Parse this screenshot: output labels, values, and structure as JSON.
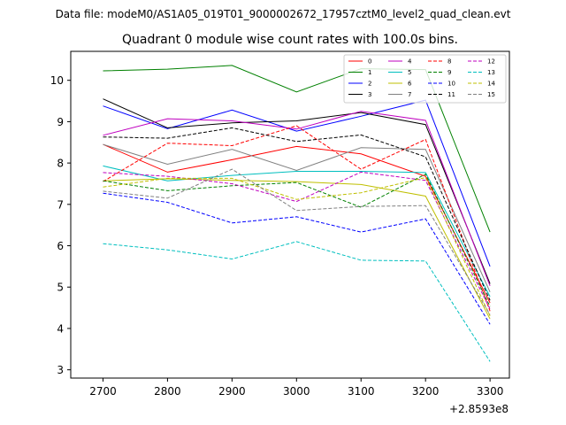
{
  "suptitle": "Data file: modeM0/AS1A05_019T01_9000002672_17957cztM0_level2_quad_clean.evt",
  "chart_data": {
    "type": "line",
    "title": "Quadrant 0 module wise count rates with 100.0s bins.",
    "xlabel": "",
    "ylabel": "",
    "x": [
      2700,
      2800,
      2900,
      3000,
      3100,
      3200,
      3300
    ],
    "x_tick_labels": [
      "2700",
      "2800",
      "2900",
      "3000",
      "3100",
      "3200",
      "3300"
    ],
    "x_offset_label": "+2.8593e8",
    "xlim": [
      2650,
      3330
    ],
    "ylim": [
      2.8,
      10.7
    ],
    "y_ticks": [
      3,
      4,
      5,
      6,
      7,
      8,
      9,
      10
    ],
    "y_tick_labels": [
      "3",
      "4",
      "5",
      "6",
      "7",
      "8",
      "9",
      "10"
    ],
    "grid": false,
    "legend_position": "top-right",
    "series": [
      {
        "name": "0",
        "color": "#ff0000",
        "dashed": false,
        "values": [
          8.45,
          7.78,
          8.08,
          8.4,
          8.22,
          7.68,
          4.62
        ]
      },
      {
        "name": "1",
        "color": "#008000",
        "dashed": false,
        "values": [
          10.23,
          10.27,
          10.36,
          9.72,
          10.28,
          10.26,
          6.33
        ]
      },
      {
        "name": "2",
        "color": "#0000ff",
        "dashed": false,
        "values": [
          9.38,
          8.83,
          9.28,
          8.77,
          9.13,
          9.52,
          5.5
        ]
      },
      {
        "name": "3",
        "color": "#000000",
        "dashed": false,
        "values": [
          9.55,
          8.85,
          8.97,
          9.02,
          9.22,
          8.93,
          5.08
        ]
      },
      {
        "name": "4",
        "color": "#bf00bf",
        "dashed": false,
        "values": [
          8.67,
          9.07,
          9.02,
          8.82,
          9.25,
          9.03,
          5.03
        ]
      },
      {
        "name": "5",
        "color": "#00bfbf",
        "dashed": false,
        "values": [
          7.93,
          7.57,
          7.7,
          7.8,
          7.8,
          7.77,
          4.77
        ]
      },
      {
        "name": "6",
        "color": "#bfbf00",
        "dashed": false,
        "values": [
          7.57,
          7.62,
          7.58,
          7.55,
          7.48,
          7.2,
          4.23
        ]
      },
      {
        "name": "7",
        "color": "#808080",
        "dashed": false,
        "values": [
          8.45,
          7.97,
          8.33,
          7.82,
          8.37,
          8.33,
          4.88
        ]
      },
      {
        "name": "8",
        "color": "#ff0000",
        "dashed": true,
        "values": [
          7.55,
          8.48,
          8.42,
          8.9,
          7.85,
          8.57,
          4.42
        ]
      },
      {
        "name": "9",
        "color": "#008000",
        "dashed": true,
        "values": [
          7.57,
          7.33,
          7.45,
          7.53,
          6.93,
          7.73,
          4.53
        ]
      },
      {
        "name": "10",
        "color": "#0000ff",
        "dashed": true,
        "values": [
          7.27,
          7.05,
          6.55,
          6.7,
          6.33,
          6.65,
          4.1
        ]
      },
      {
        "name": "11",
        "color": "#000000",
        "dashed": true,
        "values": [
          8.63,
          8.6,
          8.85,
          8.52,
          8.68,
          8.15,
          4.68
        ]
      },
      {
        "name": "12",
        "color": "#bf00bf",
        "dashed": true,
        "values": [
          7.77,
          7.68,
          7.5,
          7.07,
          7.78,
          7.58,
          4.47
        ]
      },
      {
        "name": "13",
        "color": "#00bfbf",
        "dashed": true,
        "values": [
          6.05,
          5.9,
          5.68,
          6.1,
          5.65,
          5.63,
          3.2
        ]
      },
      {
        "name": "14",
        "color": "#bfbf00",
        "dashed": true,
        "values": [
          7.42,
          7.63,
          7.63,
          7.12,
          7.28,
          7.65,
          4.3
        ]
      },
      {
        "name": "15",
        "color": "#808080",
        "dashed": true,
        "values": [
          7.32,
          7.15,
          7.85,
          6.85,
          6.95,
          6.97,
          4.33
        ]
      }
    ]
  }
}
